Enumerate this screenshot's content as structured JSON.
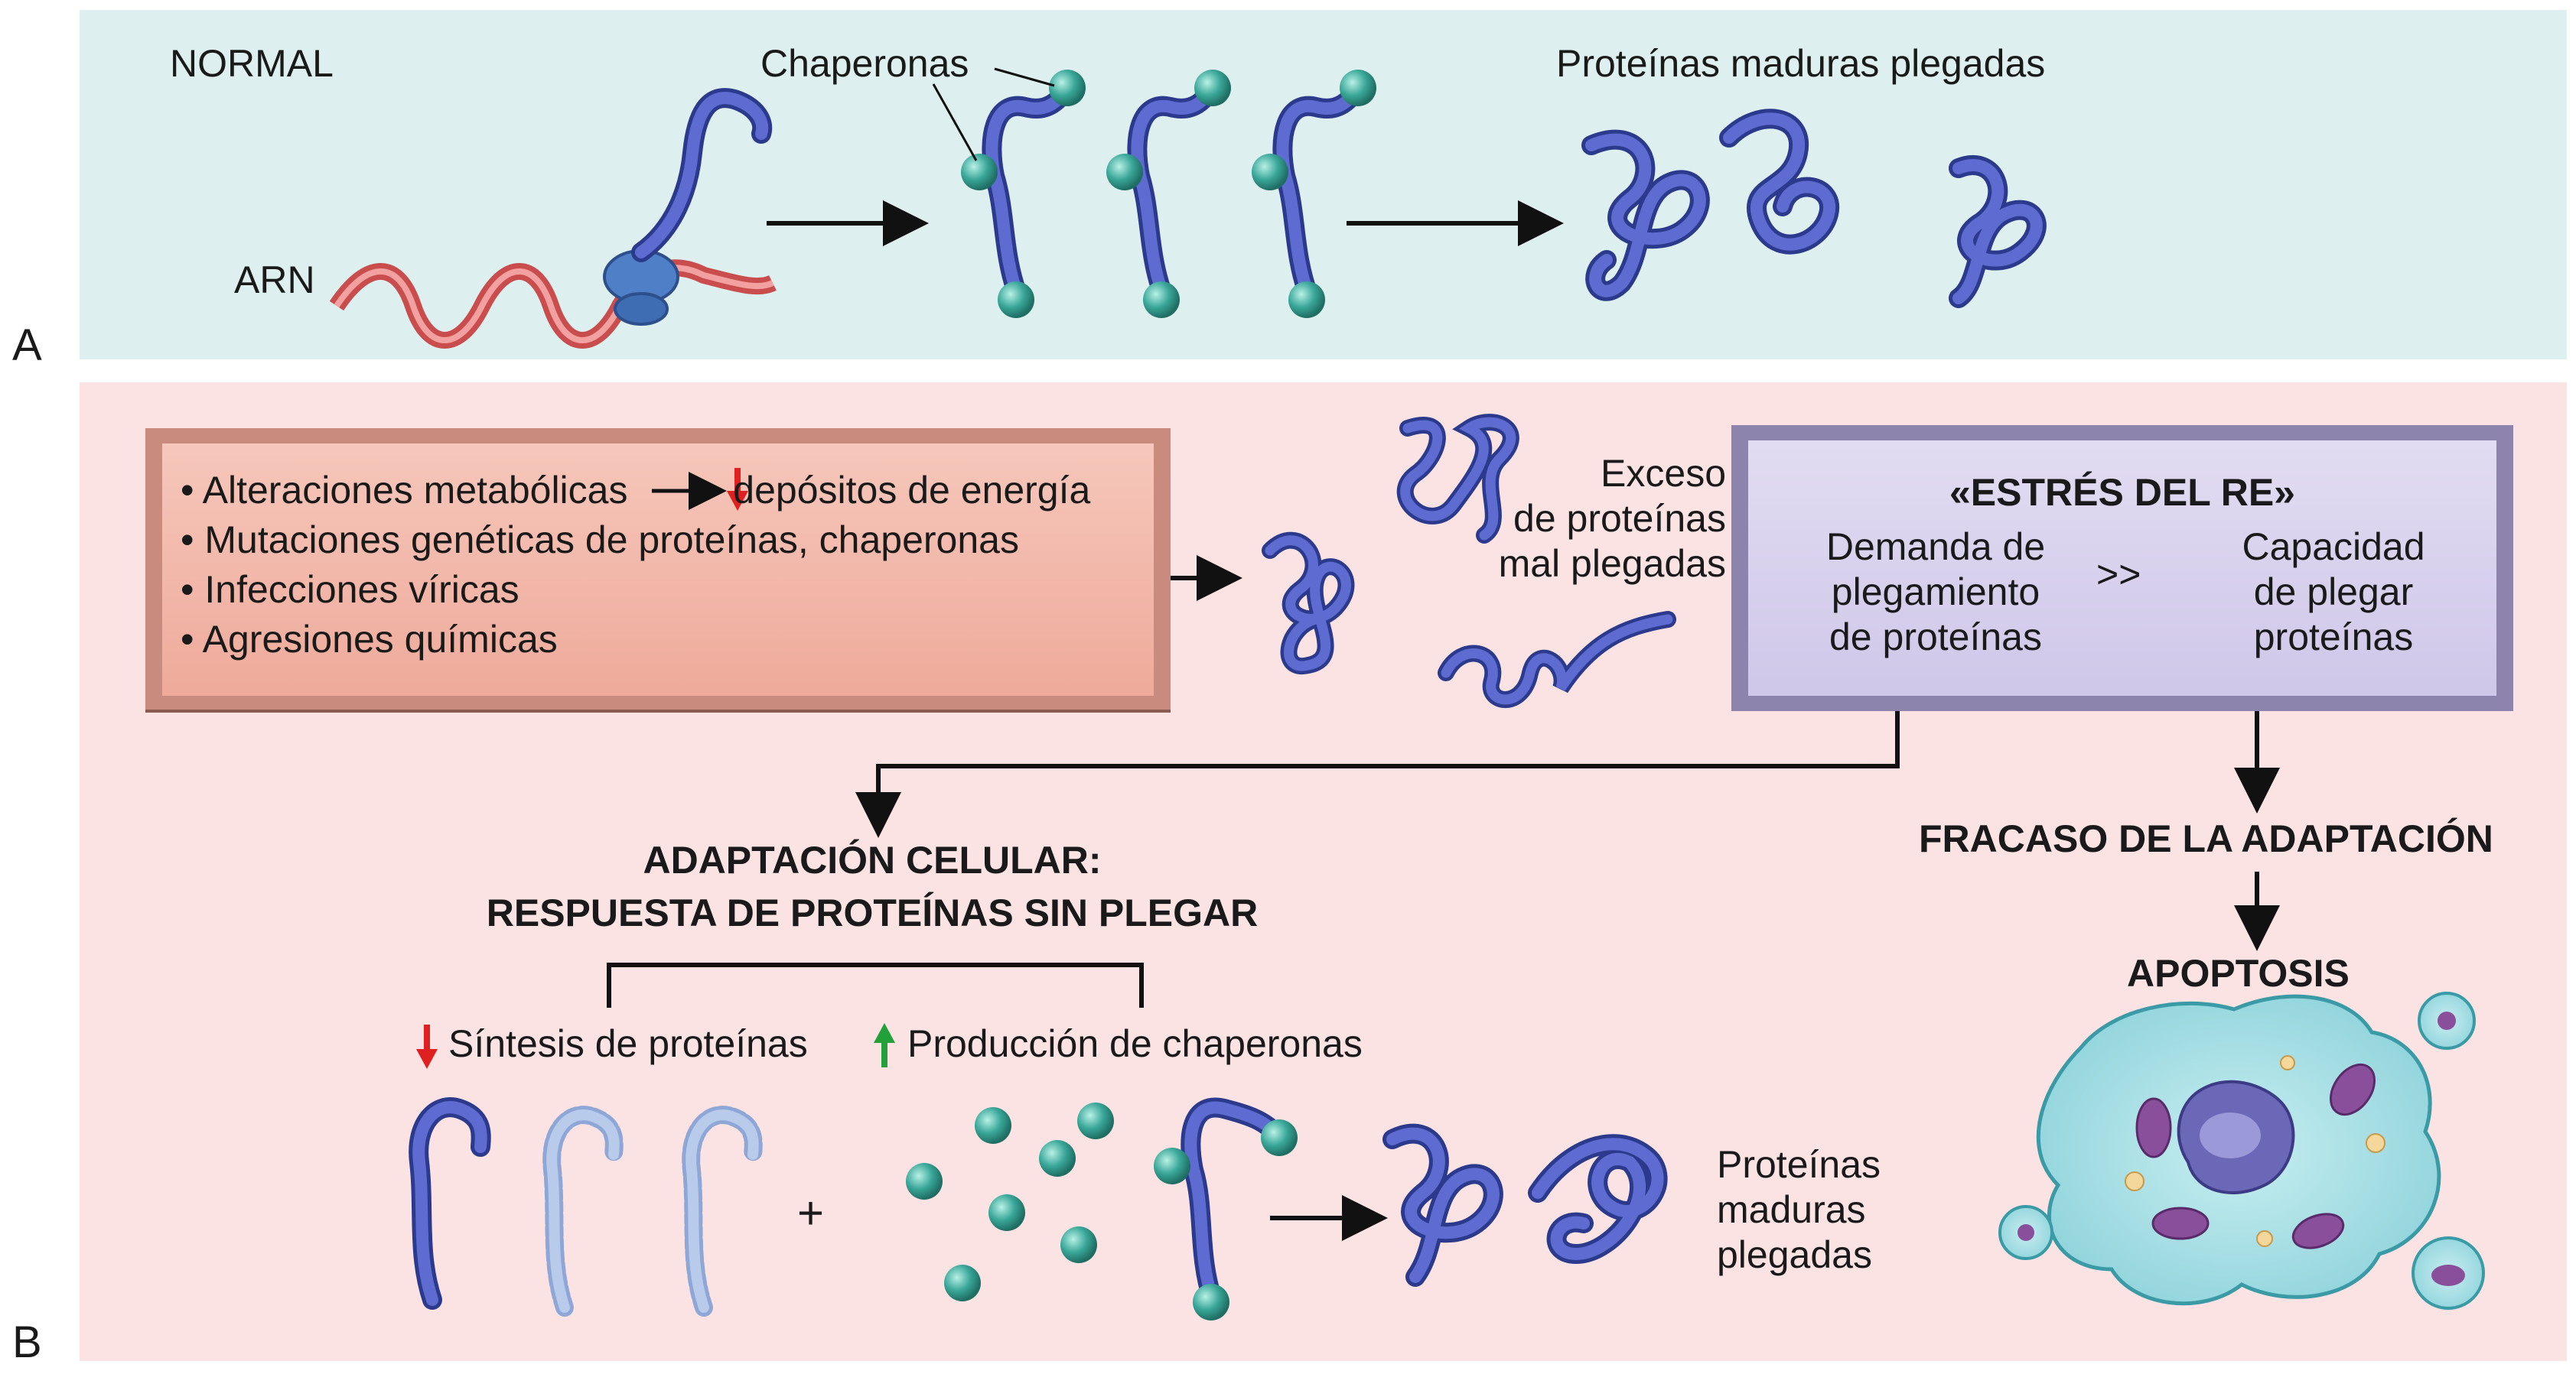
{
  "panels": {
    "a_label": "A",
    "b_label": "B"
  },
  "panel_a": {
    "normal": "NORMAL",
    "arn": "ARN",
    "chaperonas": "Chaperonas",
    "mature": "Proteínas maduras plegadas"
  },
  "panel_b": {
    "causes": [
      "• Alteraciones metabólicas",
      "depósitos de energía",
      "• Mutaciones genéticas de proteínas, chaperonas",
      "• Infecciones víricas",
      "• Agresiones químicas"
    ],
    "excess": [
      "Exceso",
      "de proteínas",
      "mal plegadas"
    ],
    "stress": {
      "title": "«ESTRÉS DEL RE»",
      "left": [
        "Demanda de",
        "plegamiento",
        "de proteínas"
      ],
      "op": ">>",
      "right": [
        "Capacidad",
        "de plegar",
        "proteínas"
      ]
    },
    "adaptation": [
      "ADAPTACIÓN CELULAR:",
      "RESPUESTA DE PROTEÍNAS SIN PLEGAR"
    ],
    "synthesis": "Síntesis de proteínas",
    "chaperone_prod": "Producción de chaperonas",
    "plus": "+",
    "mature": [
      "Proteínas",
      "maduras",
      "plegadas"
    ],
    "failure": "FRACASO DE LA ADAPTACIÓN",
    "apoptosis": "APOPTOSIS"
  },
  "colors": {
    "protein": "#4a57b0",
    "chaperone": "#3aa89a",
    "down": "#e02020",
    "up": "#22a03a",
    "causes_box": "#f2b7a8",
    "stress_box": "#d8d2ec"
  }
}
